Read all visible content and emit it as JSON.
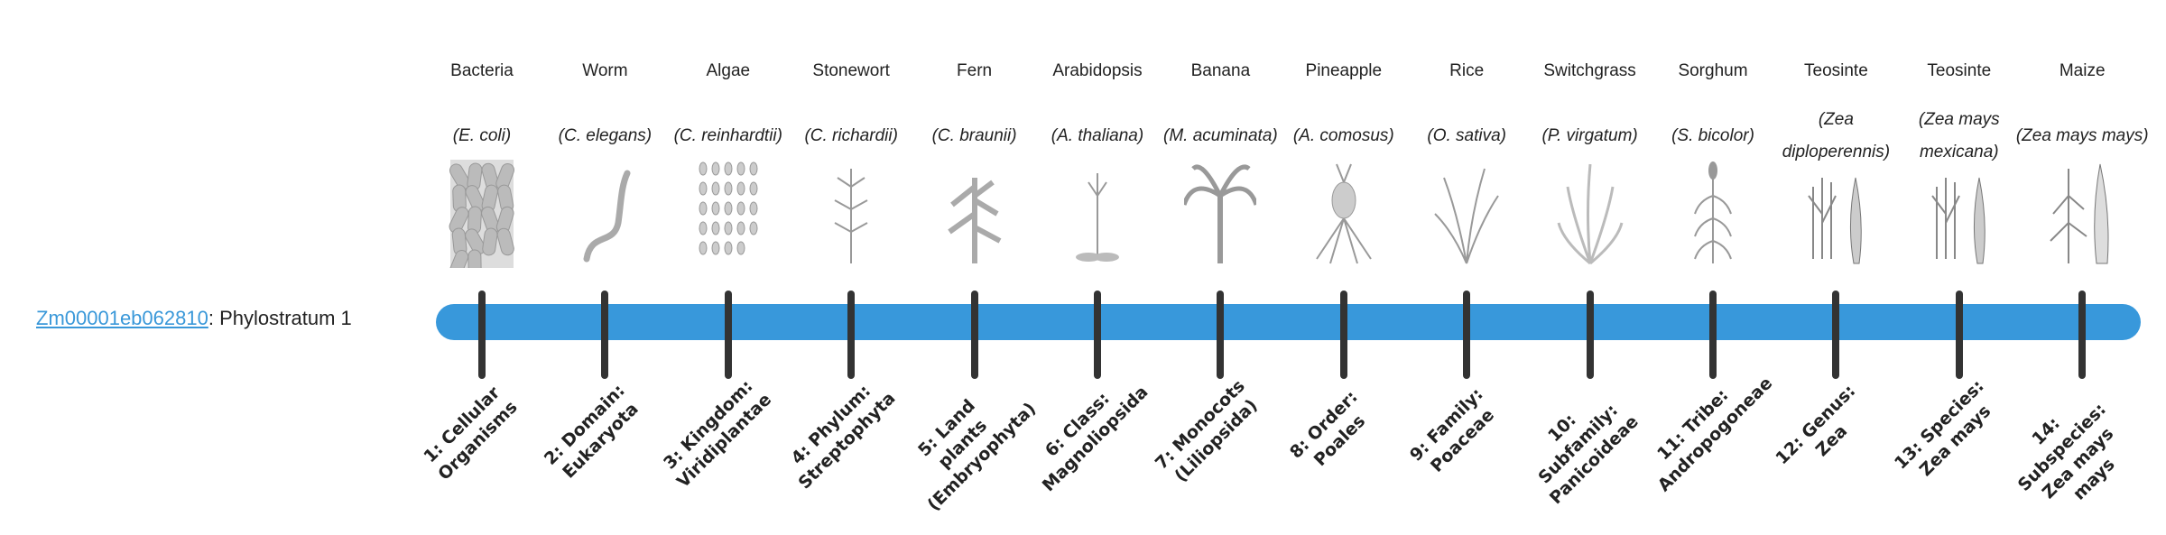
{
  "gene": {
    "id": "Zm00001eb062810",
    "separator": ": ",
    "stratum_label": "Phylostratum 1"
  },
  "bar_color": "#3898db",
  "strata": [
    {
      "common": "Bacteria",
      "scientific": "(E. coli)",
      "level": "1: Cellular Organisms",
      "icon": "bacteria-icon"
    },
    {
      "common": "Worm",
      "scientific": "(C. elegans)",
      "level": "2: Domain: Eukaryota",
      "icon": "worm-icon"
    },
    {
      "common": "Algae",
      "scientific": "(C. reinhardtii)",
      "level": "3: Kingdom: Viridiplantae",
      "icon": "algae-icon"
    },
    {
      "common": "Stonewort",
      "scientific": "(C. richardii)",
      "level": "4: Phylum: Streptophyta",
      "icon": "stonewort-icon"
    },
    {
      "common": "Fern",
      "scientific": "(C. braunii)",
      "level": "5: Land plants (Embryophyta)",
      "icon": "fern-icon"
    },
    {
      "common": "Arabidopsis",
      "scientific": "(A. thaliana)",
      "level": "6: Class: Magnoliopsida",
      "icon": "arabidopsis-icon"
    },
    {
      "common": "Banana",
      "scientific": "(M. acuminata)",
      "level": "7: Monocots (Liliopsida)",
      "icon": "banana-icon"
    },
    {
      "common": "Pineapple",
      "scientific": "(A. comosus)",
      "level": "8: Order: Poales",
      "icon": "pineapple-icon"
    },
    {
      "common": "Rice",
      "scientific": "(O. sativa)",
      "level": "9: Family: Poaceae",
      "icon": "rice-icon"
    },
    {
      "common": "Switchgrass",
      "scientific": "(P. virgatum)",
      "level": "10: Subfamily: Panicoideae",
      "icon": "switchgrass-icon"
    },
    {
      "common": "Sorghum",
      "scientific": "(S. bicolor)",
      "level": "11: Tribe: Andropogoneae",
      "icon": "sorghum-icon"
    },
    {
      "common": "Teosinte",
      "scientific": "(Zea diploperennis)",
      "level": "12: Genus: Zea",
      "icon": "teosinte-icon"
    },
    {
      "common": "Teosinte",
      "scientific": "(Zea mays mexicana)",
      "level": "13: Species: Zea mays",
      "icon": "teosinte-icon"
    },
    {
      "common": "Maize",
      "scientific": "(Zea mays mays)",
      "level": "14: Subspecies: Zea mays mays",
      "icon": "maize-icon"
    }
  ]
}
